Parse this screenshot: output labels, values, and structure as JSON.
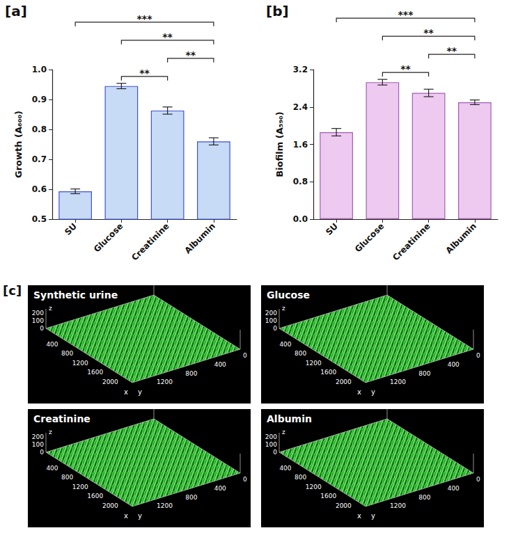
{
  "chart_data": [
    {
      "type": "bar",
      "label": "[a]",
      "y_label": "Growth (A₆₀₀)",
      "categories": [
        "SU",
        "Glucose",
        "Creatinine",
        "Albumin"
      ],
      "values": [
        0.593,
        0.945,
        0.863,
        0.76
      ],
      "errors": [
        0.008,
        0.009,
        0.012,
        0.012
      ],
      "color": "#c7daf6",
      "ylim": [
        0.5,
        1.0
      ],
      "yticks": [
        0.5,
        0.6,
        0.7,
        0.8,
        0.9,
        {
          "value": 1.0,
          "label": "1.0"
        }
      ],
      "grid": false,
      "significance": [
        {
          "from": "SU",
          "to": "Albumin",
          "label": "***"
        },
        {
          "from": "Glucose",
          "to": "Creatinine",
          "label": "**"
        },
        {
          "from": "Glucose",
          "to": "Albumin",
          "label": "**"
        },
        {
          "from": "Creatinine",
          "to": "Albumin",
          "label": "**"
        }
      ]
    },
    {
      "type": "bar",
      "label": "[b]",
      "y_label": "Biofilm (A₅₉₀)",
      "categories": [
        "SU",
        "Glucose",
        "Creatinine",
        "Albumin"
      ],
      "values": [
        1.86,
        2.93,
        2.7,
        2.5
      ],
      "errors": [
        0.08,
        0.06,
        0.08,
        0.05
      ],
      "color": "#eec9f0",
      "ylim": [
        0.0,
        3.2
      ],
      "yticks": [
        {
          "value": 0.0,
          "label": "0.0"
        },
        0.8,
        1.6,
        2.4,
        3.2
      ],
      "grid": false,
      "significance": [
        {
          "from": "SU",
          "to": "Albumin",
          "label": "***"
        },
        {
          "from": "Glucose",
          "to": "Creatinine",
          "label": "**"
        },
        {
          "from": "Glucose",
          "to": "Albumin",
          "label": "**"
        },
        {
          "from": "Creatinine",
          "to": "Albumin",
          "label": "**"
        }
      ]
    }
  ],
  "panel_c": {
    "label": "[c]",
    "images": [
      "Synthetic urine",
      "Glucose",
      "Creatinine",
      "Albumin"
    ],
    "x_label": "x",
    "y_label": "y",
    "z_label": "z",
    "xlim": [
      0,
      2300
    ],
    "ylim": [
      0,
      1500
    ],
    "zlim": [
      0,
      250
    ],
    "x_ticks": [
      400,
      800,
      1200,
      1600,
      2000
    ],
    "y_ticks": [
      0,
      400,
      800,
      1200
    ],
    "z_ticks": [
      0,
      100,
      200
    ]
  }
}
